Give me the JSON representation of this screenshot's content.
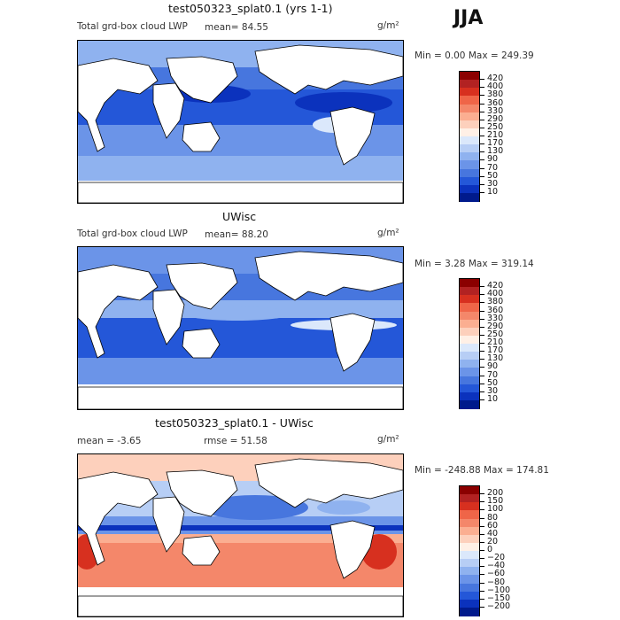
{
  "season": "JJA",
  "units": "g/m²",
  "panels": [
    {
      "title": "test050323_splat0.1 (yrs 1-1)",
      "field_label": "Total grd-box cloud LWP",
      "stat_text": "mean=  84.55",
      "range_text": "Min =    0.00 Max = 249.39",
      "colorbar": {
        "labels": [
          "420",
          "400",
          "380",
          "360",
          "330",
          "290",
          "250",
          "210",
          "170",
          "130",
          "90",
          "70",
          "50",
          "30",
          "10"
        ],
        "colors": [
          "#8b0000",
          "#b22222",
          "#d7301f",
          "#ef6548",
          "#f4876a",
          "#fbae91",
          "#fdd0bc",
          "#fff0e6",
          "#dbe8fb",
          "#b7cef5",
          "#8fb2ef",
          "#6b94e8",
          "#4776de",
          "#2457d8",
          "#0b32bd",
          "#001a8c"
        ]
      }
    },
    {
      "title": "UWisc",
      "field_label": "Total grd-box cloud LWP",
      "stat_text": "mean=  88.20",
      "range_text": "Min =    3.28 Max = 319.14",
      "colorbar": {
        "labels": [
          "420",
          "400",
          "380",
          "360",
          "330",
          "290",
          "250",
          "210",
          "170",
          "130",
          "90",
          "70",
          "50",
          "30",
          "10"
        ],
        "colors": [
          "#8b0000",
          "#b22222",
          "#d7301f",
          "#ef6548",
          "#f4876a",
          "#fbae91",
          "#fdd0bc",
          "#fff0e6",
          "#dbe8fb",
          "#b7cef5",
          "#8fb2ef",
          "#6b94e8",
          "#4776de",
          "#2457d8",
          "#0b32bd",
          "#001a8c"
        ]
      }
    },
    {
      "title": "test050323_splat0.1 - UWisc",
      "mean_text": "mean =   -3.65",
      "rmse_text": "rmse =   51.58",
      "range_text": "Min = -248.88 Max = 174.81",
      "colorbar": {
        "labels": [
          "200",
          "150",
          "100",
          "80",
          "60",
          "40",
          "20",
          "0",
          "−20",
          "−40",
          "−60",
          "−80",
          "−100",
          "−150",
          "−200"
        ],
        "colors": [
          "#8b0000",
          "#b22222",
          "#d7301f",
          "#ef6548",
          "#f4876a",
          "#fbae91",
          "#fdd0bc",
          "#fff0e6",
          "#dbe8fb",
          "#b7cef5",
          "#8fb2ef",
          "#6b94e8",
          "#4776de",
          "#2457d8",
          "#0b32bd",
          "#001a8c"
        ]
      }
    }
  ]
}
